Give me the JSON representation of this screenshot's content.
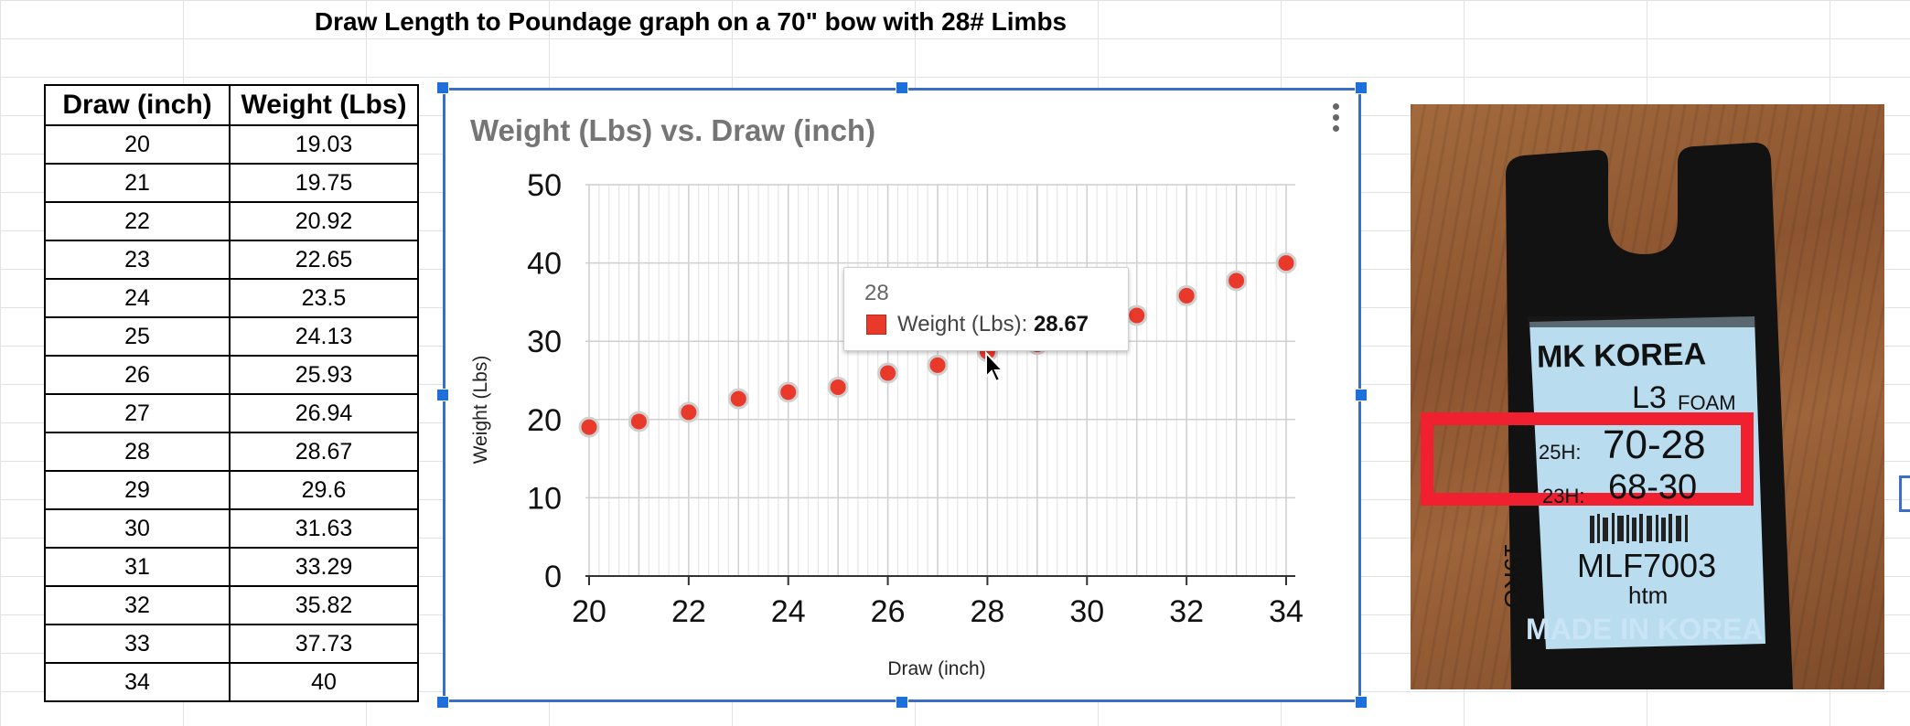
{
  "sheet": {
    "title": "Draw Length to Poundage graph on a 70\" bow with 28# Limbs"
  },
  "table": {
    "headers": [
      "Draw (inch)",
      "Weight (Lbs)"
    ],
    "rows": [
      [
        "20",
        "19.03"
      ],
      [
        "21",
        "19.75"
      ],
      [
        "22",
        "20.92"
      ],
      [
        "23",
        "22.65"
      ],
      [
        "24",
        "23.5"
      ],
      [
        "25",
        "24.13"
      ],
      [
        "26",
        "25.93"
      ],
      [
        "27",
        "26.94"
      ],
      [
        "28",
        "28.67"
      ],
      [
        "29",
        "29.6"
      ],
      [
        "30",
        "31.63"
      ],
      [
        "31",
        "33.29"
      ],
      [
        "32",
        "35.82"
      ],
      [
        "33",
        "37.73"
      ],
      [
        "34",
        "40"
      ]
    ]
  },
  "chart_data": {
    "type": "scatter",
    "title": "Weight (Lbs) vs. Draw (inch)",
    "xlabel": "Draw (inch)",
    "ylabel": "Weight (Lbs)",
    "x": [
      20,
      21,
      22,
      23,
      24,
      25,
      26,
      27,
      28,
      29,
      30,
      31,
      32,
      33,
      34
    ],
    "series": [
      {
        "name": "Weight (Lbs)",
        "values": [
          19.03,
          19.75,
          20.92,
          22.65,
          23.5,
          24.13,
          25.93,
          26.94,
          28.67,
          29.6,
          31.63,
          33.29,
          35.82,
          37.73,
          40
        ]
      }
    ],
    "xlim": [
      20,
      34
    ],
    "ylim": [
      0,
      50
    ],
    "xticks": [
      20,
      22,
      24,
      26,
      28,
      30,
      32,
      34
    ],
    "yticks": [
      0,
      10,
      20,
      30,
      40,
      50
    ],
    "grid": true,
    "marker_color": "#e8392b"
  },
  "tooltip": {
    "x_value": "28",
    "series_label": "Weight (Lbs)",
    "separator": ": ",
    "value": "28.67"
  },
  "photo": {
    "line1": "MK KOREA",
    "line2": "L3",
    "line2b": "FOAM",
    "line3_prefix": "25H:",
    "line3_value": "70-28",
    "line4_prefix": "23H:",
    "line4_value": "68-30",
    "vertical_text": "19KO",
    "code": "MLF7003",
    "code2": "htm",
    "footer": "MADE IN KOREA",
    "highlight_color": "#f02030"
  },
  "colors": {
    "selection": "#3a6fc4",
    "handle": "#1e6fd9",
    "marker": "#e8392b"
  }
}
